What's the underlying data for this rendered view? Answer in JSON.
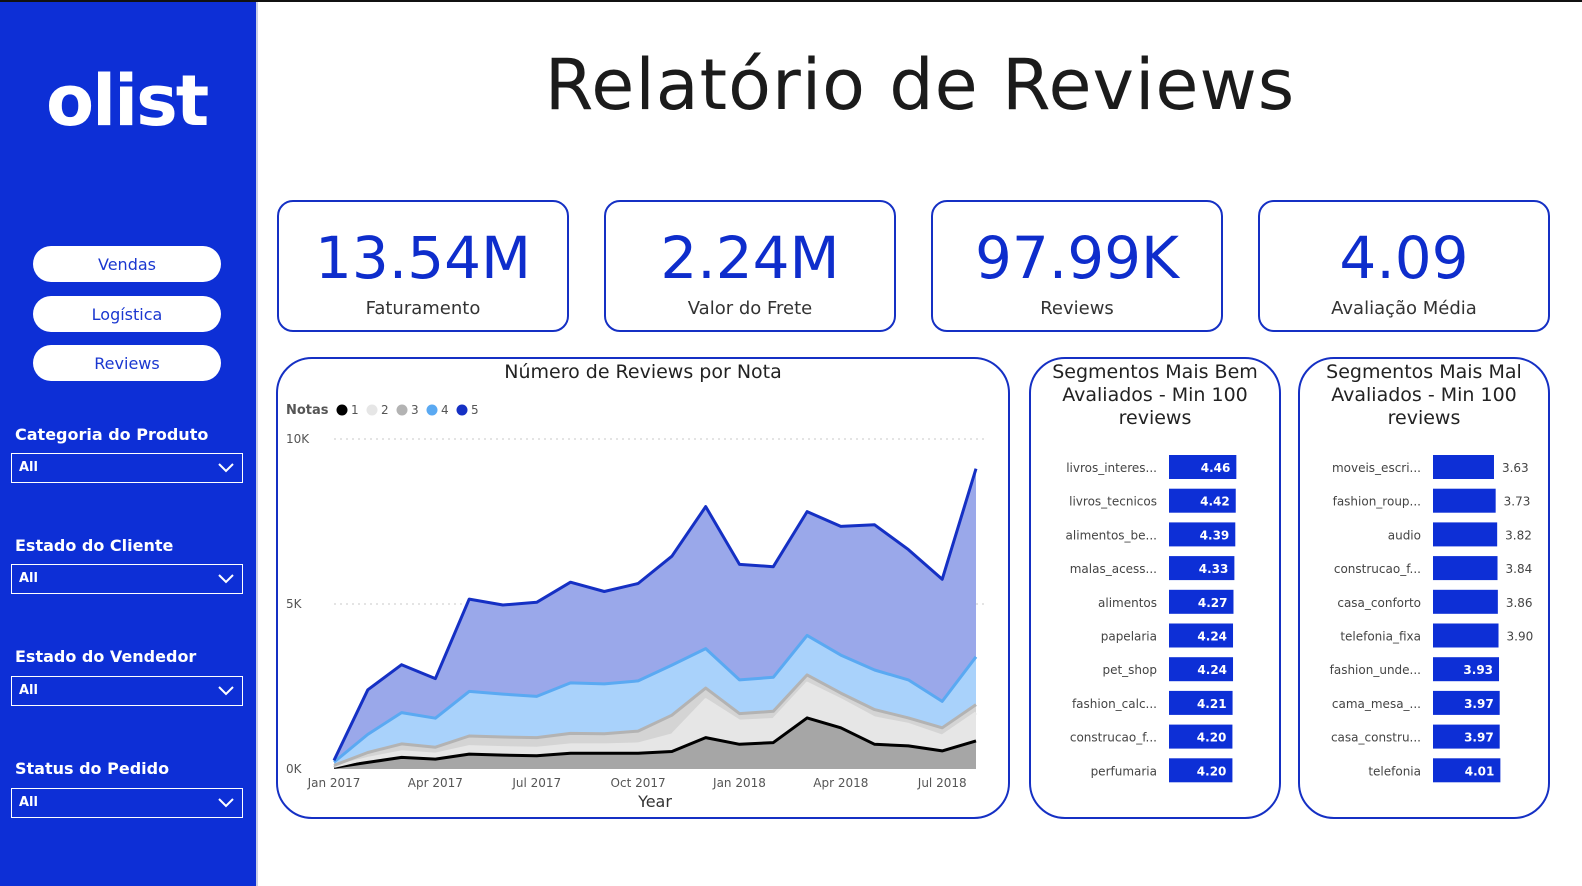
{
  "sidebar": {
    "logo": "olist",
    "nav": [
      {
        "label": "Vendas"
      },
      {
        "label": "Logística"
      },
      {
        "label": "Reviews"
      }
    ],
    "filters": [
      {
        "label": "Categoria do Produto",
        "value": "All"
      },
      {
        "label": "Estado do Cliente",
        "value": "All"
      },
      {
        "label": "Estado do Vendedor",
        "value": "All"
      },
      {
        "label": "Status do Pedido",
        "value": "All"
      }
    ]
  },
  "header": {
    "title": "Relatório de Reviews"
  },
  "kpis": [
    {
      "value": "13.54M",
      "label": "Faturamento"
    },
    {
      "value": "2.24M",
      "label": "Valor do Frete"
    },
    {
      "value": "97.99K",
      "label": "Reviews"
    },
    {
      "value": "4.09",
      "label": "Avaliação Média"
    }
  ],
  "colors": {
    "accent": "#0d2fd6",
    "sidebar": "#0d2fd6",
    "bar": "#0d2fd6"
  },
  "chart_data": [
    {
      "type": "area",
      "title": "Número de Reviews por Nota",
      "xlabel": "Year",
      "ylabel": "",
      "legend_title": "Notas",
      "legend_position": "top-left",
      "ylim": [
        0,
        10000
      ],
      "y_ticks": [
        "0K",
        "5K",
        "10K"
      ],
      "x_tick_labels": [
        "Jan 2017",
        "Apr 2017",
        "Jul 2017",
        "Oct 2017",
        "Jan 2018",
        "Apr 2018",
        "Jul 2018"
      ],
      "x": [
        "Jan 2017",
        "Feb 2017",
        "Mar 2017",
        "Apr 2017",
        "May 2017",
        "Jun 2017",
        "Jul 2017",
        "Aug 2017",
        "Sep 2017",
        "Oct 2017",
        "Nov 2017",
        "Dec 2017",
        "Jan 2018",
        "Feb 2018",
        "Mar 2018",
        "Apr 2018",
        "May 2018",
        "Jun 2018",
        "Jul 2018",
        "Aug 2018"
      ],
      "stacked": true,
      "series": [
        {
          "name": "1",
          "color": "#000000",
          "values": [
            50,
            200,
            350,
            300,
            450,
            420,
            400,
            480,
            480,
            480,
            530,
            950,
            750,
            800,
            1550,
            1250,
            750,
            700,
            550,
            850
          ]
        },
        {
          "name": "2",
          "color": "#e6e6e6",
          "values": [
            30,
            120,
            170,
            150,
            230,
            230,
            230,
            250,
            250,
            280,
            500,
            1150,
            700,
            700,
            1050,
            850,
            800,
            650,
            450,
            850
          ]
        },
        {
          "name": "3",
          "color": "#b3b3b3",
          "values": [
            30,
            180,
            240,
            210,
            320,
            320,
            320,
            350,
            340,
            390,
            600,
            350,
            230,
            250,
            250,
            200,
            250,
            200,
            250,
            250
          ]
        },
        {
          "name": "4",
          "color": "#5aa9f2",
          "values": [
            100,
            550,
            950,
            880,
            1350,
            1300,
            1250,
            1530,
            1510,
            1520,
            1520,
            1200,
            1020,
            1030,
            1200,
            1150,
            1200,
            1150,
            800,
            1450
          ]
        },
        {
          "name": "5",
          "color": "#1530c4",
          "values": [
            50,
            1350,
            1450,
            1200,
            2800,
            2700,
            2850,
            3050,
            2800,
            2950,
            3300,
            4300,
            3500,
            3350,
            3750,
            3900,
            4400,
            3950,
            3700,
            5700
          ]
        }
      ]
    },
    {
      "type": "bar",
      "orientation": "horizontal",
      "title": "Segmentos Mais Bem Avaliados - Min 100 reviews",
      "xlim": [
        0,
        4.5
      ],
      "categories": [
        "livros_interes...",
        "livros_tecnicos",
        "alimentos_be...",
        "malas_acess...",
        "alimentos",
        "papelaria",
        "pet_shop",
        "fashion_calc...",
        "construcao_f...",
        "perfumaria"
      ],
      "values": [
        4.46,
        4.42,
        4.39,
        4.33,
        4.27,
        4.24,
        4.24,
        4.21,
        4.2,
        4.2
      ],
      "value_labels": [
        "4.46",
        "4.42",
        "4.39",
        "4.33",
        "4.27",
        "4.24",
        "4.24",
        "4.21",
        "4.20",
        "4.20"
      ]
    },
    {
      "type": "bar",
      "orientation": "horizontal",
      "title": "Segmentos Mais Mal Avaliados - Min 100 reviews",
      "xlim": [
        0,
        4.1
      ],
      "categories": [
        "moveis_escri...",
        "fashion_roup...",
        "audio",
        "construcao_f...",
        "casa_conforto",
        "telefonia_fixa",
        "fashion_unde...",
        "cama_mesa_...",
        "casa_constru...",
        "telefonia"
      ],
      "values": [
        3.63,
        3.73,
        3.82,
        3.84,
        3.86,
        3.9,
        3.93,
        3.97,
        3.97,
        4.01
      ],
      "value_labels": [
        "3.63",
        "3.73",
        "3.82",
        "3.84",
        "3.86",
        "3.90",
        "3.93",
        "3.97",
        "3.97",
        "4.01"
      ]
    }
  ]
}
